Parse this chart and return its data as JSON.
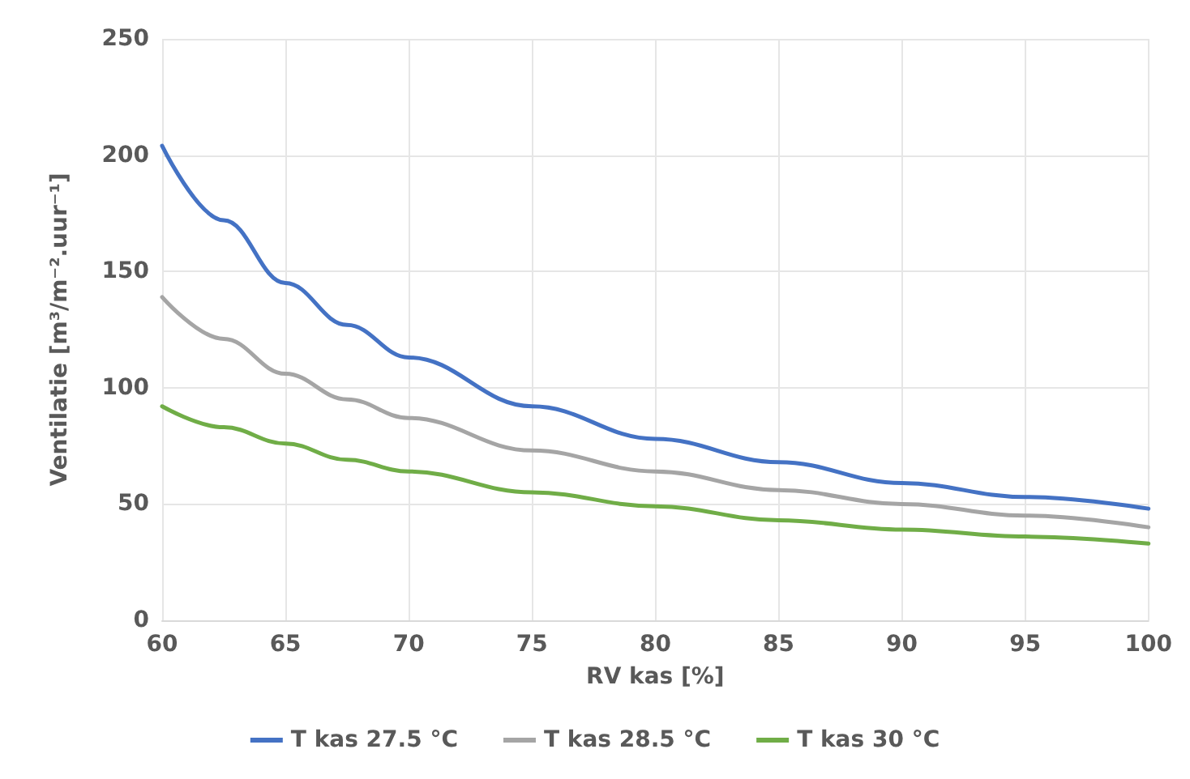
{
  "chart_data": {
    "type": "line",
    "xlabel": "RV kas [%]",
    "ylabel": "Ventilatie [m³/m⁻².uur⁻¹]",
    "x": [
      60,
      62.5,
      65,
      67.5,
      70,
      75,
      80,
      85,
      90,
      95,
      100
    ],
    "series": [
      {
        "name": "T kas 27.5 °C",
        "color": "#4472c4",
        "values": [
          204,
          172,
          145,
          127,
          113,
          92,
          78,
          68,
          59,
          53,
          48
        ]
      },
      {
        "name": "T kas 28.5 °C",
        "color": "#a5a5a5",
        "values": [
          139,
          121,
          106,
          95,
          87,
          73,
          64,
          56,
          50,
          45,
          40
        ]
      },
      {
        "name": "T kas 30 °C",
        "color": "#70ad47",
        "values": [
          92,
          83,
          76,
          69,
          64,
          55,
          49,
          43,
          39,
          36,
          33
        ]
      }
    ],
    "xlim": [
      60,
      100
    ],
    "xticks": [
      60,
      65,
      70,
      75,
      80,
      85,
      90,
      95,
      100
    ],
    "ylim": [
      0,
      250
    ],
    "yticks": [
      0,
      50,
      100,
      150,
      200,
      250
    ],
    "grid": true,
    "legend": "bottom",
    "marker": "none",
    "line_style": "solid"
  }
}
